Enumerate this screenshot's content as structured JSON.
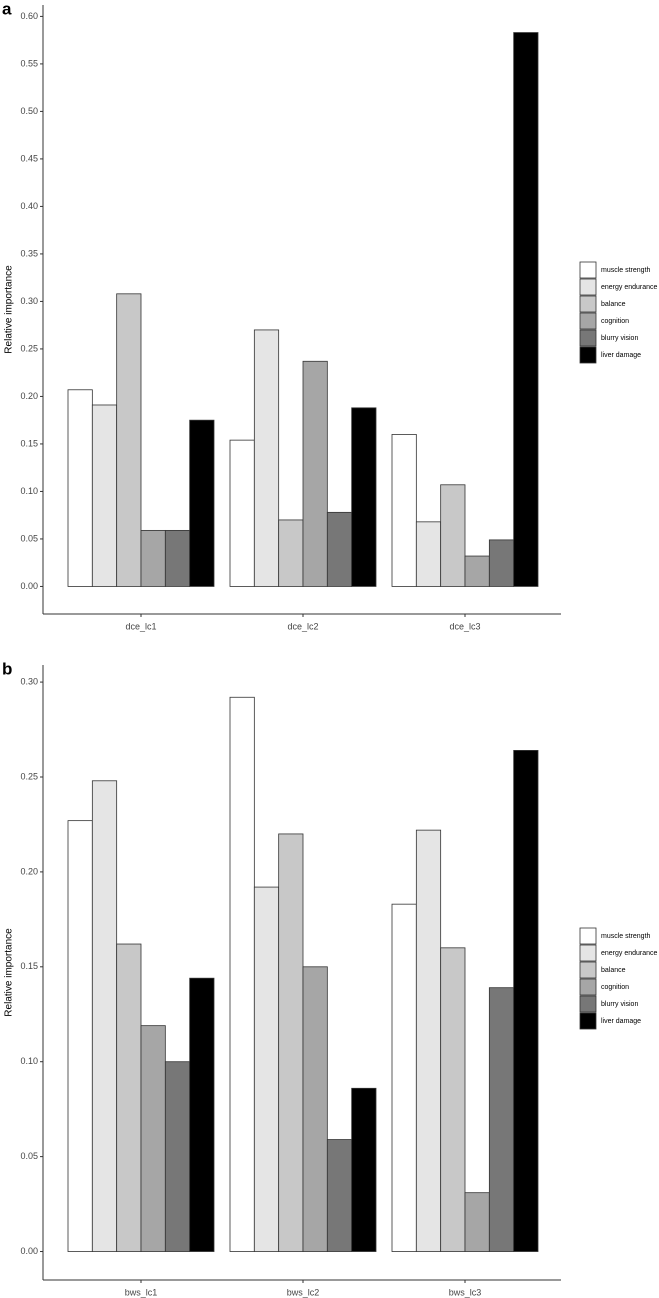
{
  "chart_data": [
    {
      "type": "bar",
      "panel": "a",
      "y_label": "Relative importance",
      "categories": [
        "dce_lc1",
        "dce_lc2",
        "dce_lc3"
      ],
      "series": [
        {
          "name": "muscle strength",
          "color": "#ffffff",
          "values": [
            0.207,
            0.154,
            0.16
          ]
        },
        {
          "name": "energy endurance",
          "color": "#e5e5e5",
          "values": [
            0.191,
            0.27,
            0.068
          ]
        },
        {
          "name": "balance",
          "color": "#c8c8c8",
          "values": [
            0.308,
            0.07,
            0.107
          ]
        },
        {
          "name": "cognition",
          "color": "#a6a6a6",
          "values": [
            0.059,
            0.237,
            0.032
          ]
        },
        {
          "name": "blurry vision",
          "color": "#777777",
          "values": [
            0.059,
            0.078,
            0.049
          ]
        },
        {
          "name": "liver damage",
          "color": "#000000",
          "values": [
            0.175,
            0.188,
            0.583
          ]
        }
      ],
      "ylim": [
        -0.029,
        0.612
      ],
      "yticks": [
        {
          "value": 0,
          "label": "0.00"
        },
        0.05,
        {
          "value": 0.1,
          "label": "0.10"
        },
        0.15,
        {
          "value": 0.2,
          "label": "0.20"
        },
        0.25,
        {
          "value": 0.3,
          "label": "0.30"
        },
        0.35,
        {
          "value": 0.4,
          "label": "0.40"
        },
        0.45,
        {
          "value": 0.5,
          "label": "0.50"
        },
        0.55,
        {
          "value": 0.6,
          "label": "0.60"
        }
      ]
    },
    {
      "type": "bar",
      "panel": "b",
      "y_label": "Relative importance",
      "categories": [
        "bws_lc1",
        "bws_lc2",
        "bws_lc3"
      ],
      "series": [
        {
          "name": "muscle strength",
          "color": "#ffffff",
          "values": [
            0.227,
            0.292,
            0.183
          ]
        },
        {
          "name": "energy endurance",
          "color": "#e5e5e5",
          "values": [
            0.248,
            0.192,
            0.222
          ]
        },
        {
          "name": "balance",
          "color": "#c8c8c8",
          "values": [
            0.162,
            0.22,
            0.16
          ]
        },
        {
          "name": "cognition",
          "color": "#a6a6a6",
          "values": [
            0.119,
            0.15,
            0.031
          ]
        },
        {
          "name": "blurry vision",
          "color": "#777777",
          "values": [
            0.1,
            0.059,
            0.139
          ]
        },
        {
          "name": "liver damage",
          "color": "#000000",
          "values": [
            0.144,
            0.086,
            0.264
          ]
        }
      ],
      "ylim": [
        -0.015,
        0.309
      ],
      "yticks": [
        {
          "value": 0,
          "label": "0.00"
        },
        0.05,
        {
          "value": 0.1,
          "label": "0.10"
        },
        0.15,
        {
          "value": 0.2,
          "label": "0.20"
        },
        0.25,
        {
          "value": 0.3,
          "label": "0.30"
        }
      ]
    }
  ]
}
